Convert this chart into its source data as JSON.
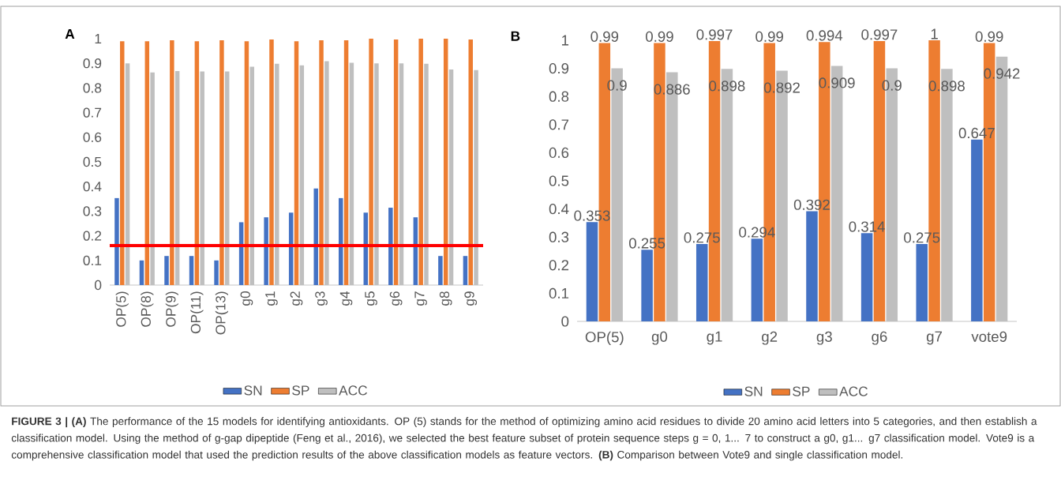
{
  "chart_data": [
    {
      "type": "bar",
      "title": "A",
      "categories": [
        "OP(5)",
        "OP(8)",
        "OP(9)",
        "OP(11)",
        "OP(13)",
        "g0",
        "g1",
        "g2",
        "g3",
        "g4",
        "g5",
        "g6",
        "g7",
        "g8",
        "g9"
      ],
      "series": [
        {
          "name": "SN",
          "color": "#4472c4",
          "values": [
            0.353,
            0.1,
            0.118,
            0.118,
            0.1,
            0.255,
            0.275,
            0.294,
            0.392,
            0.353,
            0.294,
            0.314,
            0.275,
            0.118,
            0.118
          ]
        },
        {
          "name": "SP",
          "color": "#ed7d31",
          "values": [
            0.99,
            0.99,
            0.994,
            0.99,
            0.994,
            0.99,
            0.997,
            0.99,
            0.994,
            0.994,
            1,
            0.997,
            1,
            1,
            0.997
          ]
        },
        {
          "name": "ACC",
          "color": "#bfbfbf",
          "values": [
            0.9,
            0.863,
            0.869,
            0.867,
            0.867,
            0.886,
            0.898,
            0.892,
            0.909,
            0.902,
            0.9,
            0.9,
            0.898,
            0.875,
            0.873
          ]
        }
      ],
      "ylim": [
        0,
        1
      ],
      "yticks": [
        0,
        0.1,
        0.2,
        0.3,
        0.4,
        0.5,
        0.6,
        0.7,
        0.8,
        0.9,
        1
      ],
      "ref_lines": [
        {
          "axis": "y",
          "value": 0.16,
          "color": "#ff0000"
        }
      ],
      "legend": "bottom",
      "annotations": [
        "**FIGURE 3 | (A)** The performance of the 15 models for identifying antioxidants. OP (5) stands for the method of optimizing amino acid residues to divide 20 amino acid letters into 5 categories, and then establish a classification model. Using the method of g-gap dipeptide (Feng et al., 2016), we selected the best feature subset of protein sequence steps g = 0, 1... 7 to construct a g0, g1... g7 classification model. Vote9 is a comprehensive classification model that used the prediction results of the above classification models as feature vectors. **(B)** Comparison between Vote9 and single classification model."
      ]
    },
    {
      "type": "bar",
      "title": "B",
      "categories": [
        "OP(5)",
        "g0",
        "g1",
        "g2",
        "g3",
        "g6",
        "g7",
        "vote9"
      ],
      "series": [
        {
          "name": "SN",
          "color": "#4472c4",
          "values": [
            0.353,
            0.255,
            0.275,
            0.294,
            0.392,
            0.314,
            0.275,
            0.647
          ]
        },
        {
          "name": "SP",
          "color": "#ed7d31",
          "values": [
            0.99,
            0.99,
            0.997,
            0.99,
            0.994,
            0.997,
            1,
            0.99
          ]
        },
        {
          "name": "ACC",
          "color": "#bfbfbf",
          "values": [
            0.9,
            0.886,
            0.898,
            0.892,
            0.909,
            0.9,
            0.898,
            0.942
          ]
        }
      ],
      "ylim": [
        0,
        1
      ],
      "yticks": [
        0,
        0.1,
        0.2,
        0.3,
        0.4,
        0.5,
        0.6,
        0.7,
        0.8,
        0.9,
        1
      ],
      "data_labels": true,
      "legend": "bottom"
    }
  ]
}
